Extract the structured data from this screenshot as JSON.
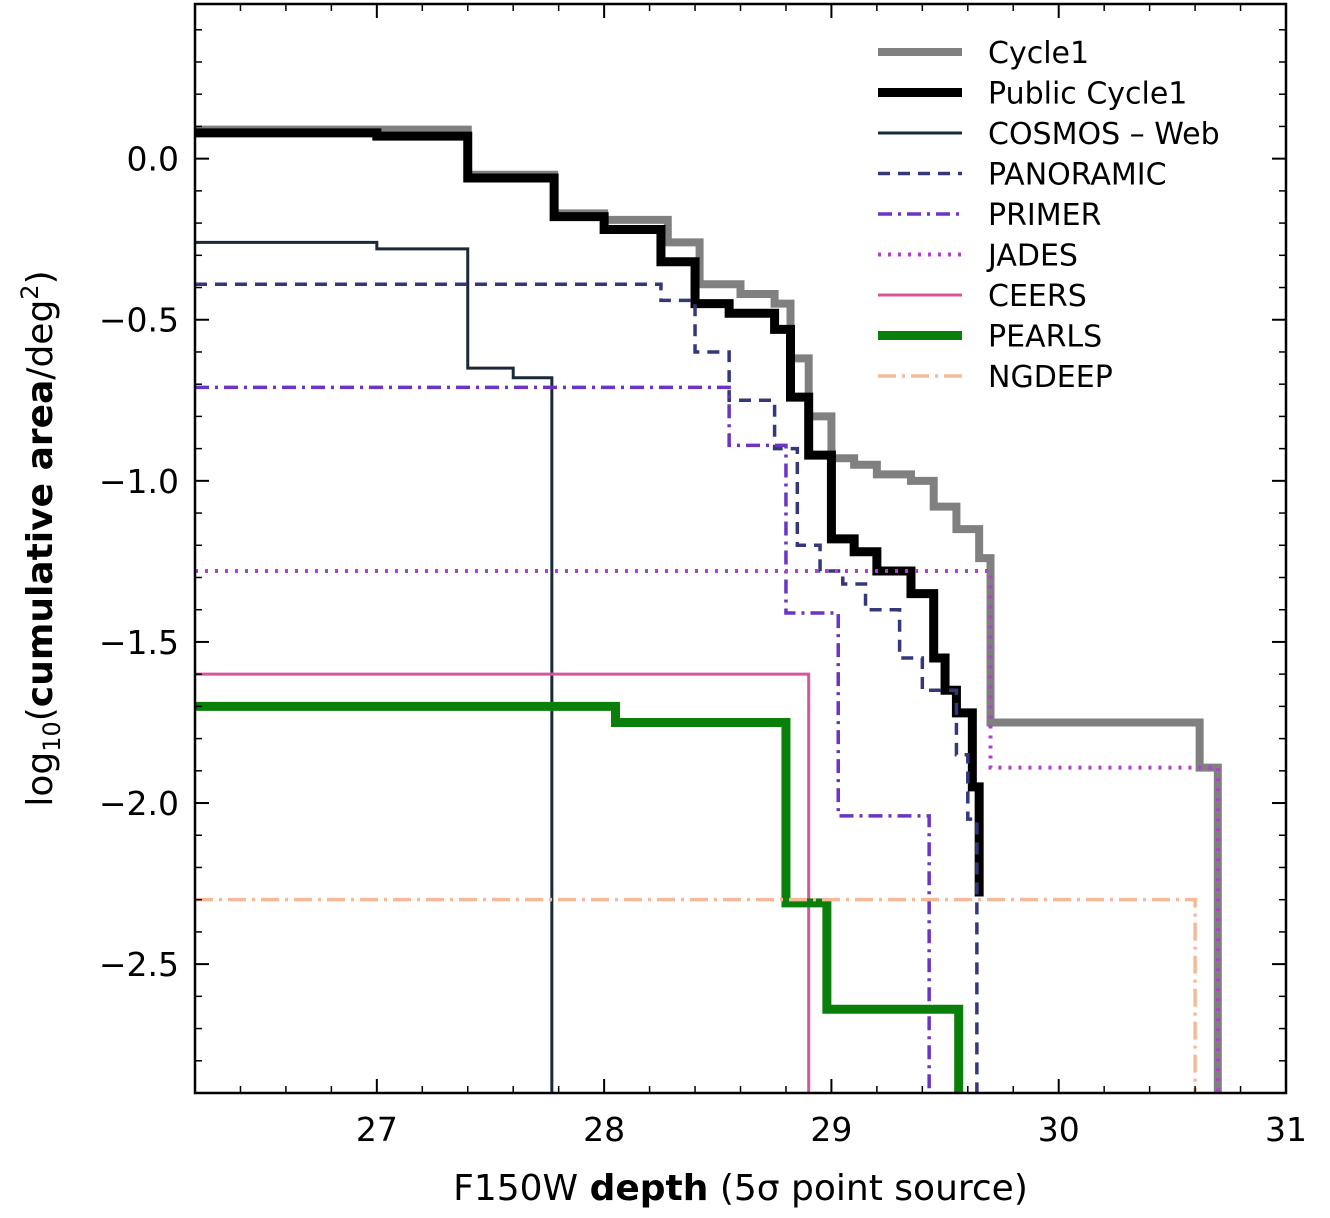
{
  "chart_data": {
    "type": "line",
    "step": true,
    "xlabel": {
      "prefix": "F150W ",
      "bold": "depth",
      "suffix": " (5σ point source)"
    },
    "ylabel": {
      "prefix": "log",
      "sub": "10",
      "open": "(",
      "bold": "cumulative area",
      "mid": "/deg",
      "sup": "2",
      "close": ")"
    },
    "xlim": [
      26.2,
      31.0
    ],
    "ylim": [
      -2.9,
      0.48
    ],
    "xticks": [
      27,
      28,
      29,
      30,
      31
    ],
    "xtick_labels": [
      "27",
      "28",
      "29",
      "30",
      "31"
    ],
    "yticks": [
      0.0,
      -0.5,
      -1.0,
      -1.5,
      -2.0,
      -2.5
    ],
    "ytick_labels": [
      "0.0",
      "−0.5",
      "−1.0",
      "−1.5",
      "−2.0",
      "−2.5"
    ],
    "grid": false,
    "legend_position": "top-right",
    "series": [
      {
        "name": "Cycle1",
        "color": "#808080",
        "width": 8,
        "dash": "",
        "x": [
          26.2,
          27.0,
          27.4,
          27.6,
          27.78,
          28.0,
          28.28,
          28.42,
          28.6,
          28.75,
          28.82,
          28.9,
          29.0,
          29.1,
          29.2,
          29.35,
          29.45,
          29.55,
          29.65,
          29.7,
          30.62,
          30.7,
          30.7
        ],
        "y": [
          0.09,
          0.09,
          -0.05,
          -0.05,
          -0.17,
          -0.19,
          -0.26,
          -0.39,
          -0.42,
          -0.45,
          -0.62,
          -0.8,
          -0.93,
          -0.95,
          -0.98,
          -1.0,
          -1.08,
          -1.15,
          -1.24,
          -1.75,
          -1.89,
          -1.89,
          -2.9
        ]
      },
      {
        "name": "Public Cycle1",
        "color": "#000000",
        "width": 9,
        "dash": "",
        "x": [
          26.2,
          27.0,
          27.4,
          27.78,
          28.0,
          28.25,
          28.4,
          28.55,
          28.75,
          28.82,
          28.9,
          29.0,
          29.1,
          29.2,
          29.35,
          29.45,
          29.5,
          29.55,
          29.62,
          29.65,
          29.65
        ],
        "y": [
          0.08,
          0.07,
          -0.06,
          -0.18,
          -0.22,
          -0.32,
          -0.45,
          -0.48,
          -0.53,
          -0.74,
          -0.92,
          -1.18,
          -1.22,
          -1.28,
          -1.35,
          -1.55,
          -1.65,
          -1.72,
          -1.95,
          -2.29,
          -2.29
        ]
      },
      {
        "name": "COSMOS – Web",
        "color": "#1a2a3a",
        "width": 3,
        "dash": "",
        "x": [
          26.2,
          27.0,
          27.4,
          27.6,
          27.77,
          27.77
        ],
        "y": [
          -0.26,
          -0.28,
          -0.65,
          -0.68,
          -0.68,
          -2.9
        ]
      },
      {
        "name": "PANORAMIC",
        "color": "#34387a",
        "width": 3.5,
        "dash": "12,8",
        "x": [
          26.2,
          27.95,
          28.25,
          28.4,
          28.55,
          28.75,
          28.85,
          28.95,
          29.05,
          29.15,
          29.3,
          29.4,
          29.55,
          29.6,
          29.64,
          29.64
        ],
        "y": [
          -0.39,
          -0.39,
          -0.44,
          -0.6,
          -0.75,
          -0.9,
          -1.2,
          -1.28,
          -1.32,
          -1.4,
          -1.55,
          -1.65,
          -1.85,
          -2.05,
          -2.05,
          -2.9
        ]
      },
      {
        "name": "PRIMER",
        "color": "#6a35c4",
        "width": 3.5,
        "dash": "14,6,3,6",
        "x": [
          26.2,
          28.42,
          28.55,
          28.8,
          28.85,
          29.03,
          29.43,
          29.43
        ],
        "y": [
          -0.71,
          -0.71,
          -0.89,
          -1.41,
          -1.41,
          -2.04,
          -2.04,
          -2.9
        ]
      },
      {
        "name": "JADES",
        "color": "#b23fd0",
        "width": 4,
        "dash": "3,7",
        "x": [
          26.2,
          29.7,
          30.7,
          30.7
        ],
        "y": [
          -1.28,
          -1.89,
          -1.89,
          -2.9
        ]
      },
      {
        "name": "CEERS",
        "color": "#d6559e",
        "width": 3,
        "dash": "",
        "x": [
          26.2,
          28.9,
          28.9
        ],
        "y": [
          -1.6,
          -1.6,
          -2.9
        ]
      },
      {
        "name": "PEARLS",
        "color": "#0a7f0a",
        "width": 9,
        "dash": "",
        "x": [
          26.2,
          28.05,
          28.8,
          28.98,
          29.56,
          29.56
        ],
        "y": [
          -1.7,
          -1.75,
          -2.31,
          -2.64,
          -2.64,
          -2.9
        ]
      },
      {
        "name": "NGDEEP",
        "color": "#f5b99a",
        "width": 3.5,
        "dash": "18,6,3,6",
        "x": [
          26.2,
          30.6,
          30.6
        ],
        "y": [
          -2.3,
          -2.3,
          -2.9
        ]
      }
    ]
  }
}
